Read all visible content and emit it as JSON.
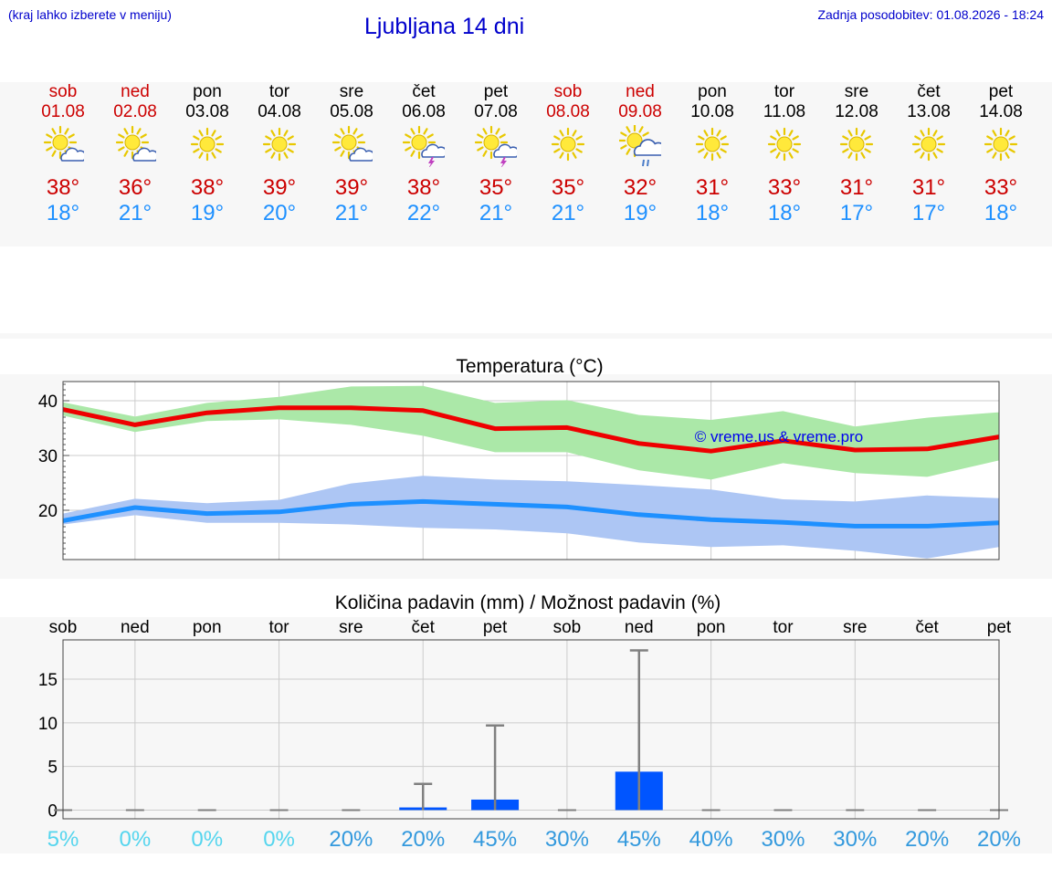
{
  "header": {
    "note": "(kraj lahko izberete v meniju)",
    "title": "Ljubljana 14 dni",
    "updated": "Zadnja posodobitev: 01.08.2026 - 18:24"
  },
  "days": [
    {
      "weekday": "sob",
      "date": "01.08",
      "weekend": true,
      "icon": "sun-cloud-icon",
      "tmax": "38°",
      "tmin": "18°"
    },
    {
      "weekday": "ned",
      "date": "02.08",
      "weekend": true,
      "icon": "sun-cloud-icon",
      "tmax": "36°",
      "tmin": "21°"
    },
    {
      "weekday": "pon",
      "date": "03.08",
      "weekend": false,
      "icon": "sun-icon",
      "tmax": "38°",
      "tmin": "19°"
    },
    {
      "weekday": "tor",
      "date": "04.08",
      "weekend": false,
      "icon": "sun-icon",
      "tmax": "39°",
      "tmin": "20°"
    },
    {
      "weekday": "sre",
      "date": "05.08",
      "weekend": false,
      "icon": "sun-cloud-icon",
      "tmax": "39°",
      "tmin": "21°"
    },
    {
      "weekday": "čet",
      "date": "06.08",
      "weekend": false,
      "icon": "sun-storm-icon",
      "tmax": "38°",
      "tmin": "22°"
    },
    {
      "weekday": "pet",
      "date": "07.08",
      "weekend": false,
      "icon": "sun-storm-icon",
      "tmax": "35°",
      "tmin": "21°"
    },
    {
      "weekday": "sob",
      "date": "08.08",
      "weekend": true,
      "icon": "sun-icon",
      "tmax": "35°",
      "tmin": "21°"
    },
    {
      "weekday": "ned",
      "date": "09.08",
      "weekend": true,
      "icon": "sun-rain-icon",
      "tmax": "32°",
      "tmin": "19°"
    },
    {
      "weekday": "pon",
      "date": "10.08",
      "weekend": false,
      "icon": "sun-icon",
      "tmax": "31°",
      "tmin": "18°"
    },
    {
      "weekday": "tor",
      "date": "11.08",
      "weekend": false,
      "icon": "sun-icon",
      "tmax": "33°",
      "tmin": "18°"
    },
    {
      "weekday": "sre",
      "date": "12.08",
      "weekend": false,
      "icon": "sun-icon",
      "tmax": "31°",
      "tmin": "17°"
    },
    {
      "weekday": "čet",
      "date": "13.08",
      "weekend": false,
      "icon": "sun-icon",
      "tmax": "31°",
      "tmin": "17°"
    },
    {
      "weekday": "pet",
      "date": "14.08",
      "weekend": false,
      "icon": "sun-icon",
      "tmax": "33°",
      "tmin": "18°"
    }
  ],
  "colors": {
    "max": "#ee0000",
    "min": "#1e90ff",
    "maxBand": "#abe8a8",
    "minBand": "#adc6f4",
    "bar": "#0055ff",
    "errbar": "#808080",
    "weekend": "#cc0000"
  },
  "chart_data": [
    {
      "type": "line",
      "title": "Temperatura (°C)",
      "watermark": "© vreme.us & vreme.pro",
      "x": [
        "01.08",
        "02.08",
        "03.08",
        "04.08",
        "05.08",
        "06.08",
        "07.08",
        "08.08",
        "09.08",
        "10.08",
        "11.08",
        "12.08",
        "13.08",
        "14.08"
      ],
      "ylim": [
        11,
        43.5
      ],
      "yticks": [
        20,
        30,
        40
      ],
      "grid": true,
      "series": [
        {
          "role": "max",
          "values": [
            38.4,
            35.6,
            37.8,
            38.7,
            38.7,
            38.2,
            34.9,
            35.1,
            32.2,
            30.8,
            32.7,
            31.0,
            31.2,
            33.4
          ],
          "band_low": [
            37.3,
            34.3,
            36.3,
            36.6,
            35.6,
            33.6,
            30.6,
            30.6,
            27.3,
            25.6,
            28.6,
            26.8,
            26.1,
            29.1
          ],
          "band_high": [
            39.7,
            37.1,
            39.6,
            40.7,
            42.6,
            42.7,
            39.6,
            40.1,
            37.4,
            36.5,
            38.1,
            35.3,
            36.9,
            37.9
          ]
        },
        {
          "role": "min",
          "values": [
            18.1,
            20.5,
            19.4,
            19.7,
            21.1,
            21.6,
            21.1,
            20.6,
            19.2,
            18.3,
            17.8,
            17.1,
            17.1,
            17.7
          ],
          "band_low": [
            17.4,
            19.1,
            17.7,
            17.7,
            17.4,
            16.8,
            16.5,
            15.8,
            14.1,
            13.3,
            13.6,
            12.6,
            11.2,
            13.3
          ],
          "band_high": [
            19.4,
            22.1,
            21.3,
            21.9,
            24.9,
            26.3,
            25.6,
            25.3,
            24.6,
            23.8,
            22.0,
            21.6,
            22.7,
            22.2
          ]
        }
      ]
    },
    {
      "type": "bar",
      "title": "Količina padavin (mm) / Možnost padavin (%)",
      "categories": [
        "sob",
        "ned",
        "pon",
        "tor",
        "sre",
        "čet",
        "pet",
        "sob",
        "ned",
        "pon",
        "tor",
        "sre",
        "čet",
        "pet"
      ],
      "values": [
        0,
        0,
        0,
        0,
        0,
        0.3,
        1.2,
        0,
        4.4,
        0,
        0,
        0,
        0,
        0
      ],
      "upper": [
        0,
        0,
        0,
        0,
        0,
        3.0,
        9.7,
        0,
        18.3,
        0,
        0,
        0,
        0,
        0
      ],
      "ylim": [
        -1,
        19.5
      ],
      "yticks": [
        0,
        5,
        10,
        15
      ],
      "probability": [
        "5%",
        "0%",
        "0%",
        "0%",
        "20%",
        "20%",
        "45%",
        "30%",
        "45%",
        "40%",
        "30%",
        "30%",
        "20%",
        "20%"
      ],
      "probColors": [
        "#55d5ee",
        "#55d5ee",
        "#55d5ee",
        "#55d5ee",
        "#3399dd",
        "#3399dd",
        "#3399dd",
        "#3399dd",
        "#3399dd",
        "#3399dd",
        "#3399dd",
        "#3399dd",
        "#3399dd",
        "#3399dd"
      ]
    }
  ]
}
